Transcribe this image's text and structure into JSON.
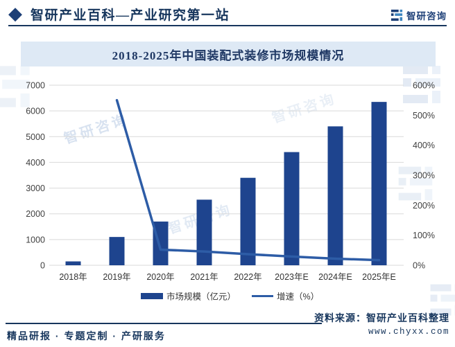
{
  "header": {
    "diamond_icon": "◆",
    "title": "智研产业百科—产业研究第一站",
    "brand": "智研咨询"
  },
  "banner": {
    "title": "2018-2025年中国装配式装修市场规模情况"
  },
  "chart_data": {
    "type": "bar",
    "title": "2018-2025年中国装配式装修市场规模情况",
    "categories": [
      "2018年",
      "2019年",
      "2020年",
      "2021年",
      "2022年",
      "2023年E",
      "2024年E",
      "2025年E"
    ],
    "series": [
      {
        "name": "市场规模（亿元）",
        "type": "bar",
        "axis": "left",
        "values": [
          150,
          1100,
          1700,
          2550,
          3400,
          4400,
          5400,
          6350
        ]
      },
      {
        "name": "增速（%）",
        "type": "line",
        "axis": "right",
        "values": [
          null,
          550,
          52,
          46,
          37,
          29,
          22,
          17
        ]
      }
    ],
    "left_axis": {
      "min": 0,
      "max": 7000,
      "step": 1000,
      "ticks": [
        "0",
        "1000",
        "2000",
        "3000",
        "4000",
        "5000",
        "6000",
        "7000"
      ]
    },
    "right_axis": {
      "min": 0,
      "max": 600,
      "step": 100,
      "ticks": [
        "0%",
        "100%",
        "200%",
        "300%",
        "400%",
        "500%",
        "600%"
      ]
    },
    "grid": true,
    "legend_position": "bottom",
    "colors": {
      "bar": "#1e448e",
      "line": "#2d5ca6",
      "grid": "#d9d9d9",
      "axis_text": "#404040",
      "label_text": "#333333"
    }
  },
  "footer": {
    "services": "精品研报 · 专题定制 · 产研服务",
    "source": "资料来源：智研产业百科整理",
    "website": "www.chyxx.com"
  },
  "watermark": {
    "text": "智研咨询"
  }
}
